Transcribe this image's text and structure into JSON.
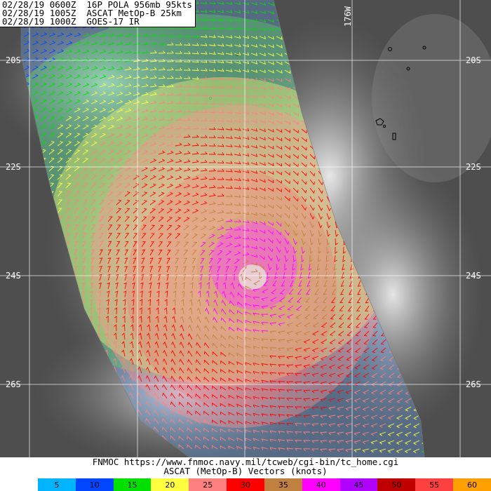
{
  "header": {
    "line1": "02/28/19 0600Z  16P POLA 956mb 95kts",
    "line2": "02/28/19 1005Z  ASCAT MetOp-B 25km",
    "line3": "02/28/19 1000Z  GOES-17 IR"
  },
  "grid": {
    "lat_labels": [
      "20S",
      "22S",
      "24S",
      "26S"
    ],
    "lon_label": "176W"
  },
  "footer": {
    "credit": "FNMOC https://www.fnmoc.navy.mil/tcweb/cgi-bin/tc_home.cgi",
    "subtitle": "ASCAT (MetOp-B) Vectors (knots)"
  },
  "colorbar": [
    {
      "label": "5",
      "color": "#00b4ff"
    },
    {
      "label": "10",
      "color": "#0046ff"
    },
    {
      "label": "15",
      "color": "#00e000"
    },
    {
      "label": "20",
      "color": "#ffff40"
    },
    {
      "label": "25",
      "color": "#ff8080"
    },
    {
      "label": "30",
      "color": "#ff0000"
    },
    {
      "label": "35",
      "color": "#c08040"
    },
    {
      "label": "40",
      "color": "#ff00ff"
    },
    {
      "label": "45",
      "color": "#b000ff"
    },
    {
      "label": "50",
      "color": "#c00000"
    },
    {
      "label": "55",
      "color": "#ff4040"
    },
    {
      "label": "60",
      "color": "#ffa000"
    }
  ],
  "storm": {
    "name": "POLA",
    "id": "16P",
    "pressure": "956mb",
    "wind": "95kts"
  }
}
